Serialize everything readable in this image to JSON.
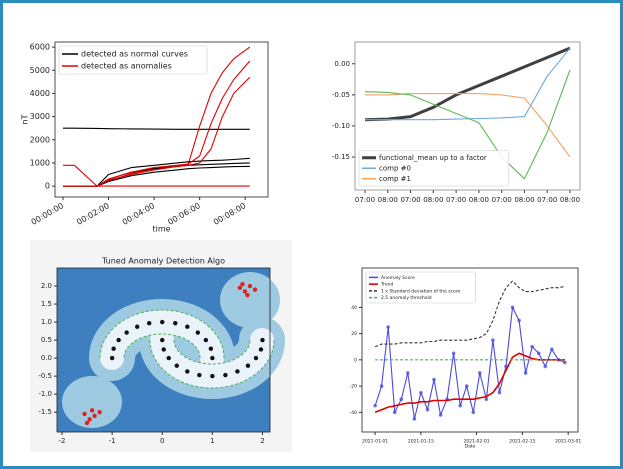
{
  "chart_data": [
    {
      "type": "line",
      "ylabel": "nT",
      "xlabel": "time",
      "x": [
        0,
        0.5,
        1.5,
        2,
        3,
        4,
        5,
        5.5,
        6,
        6.5,
        7,
        7.5,
        8.2
      ],
      "xlim": [
        -0.35,
        9
      ],
      "xticks": [
        {
          "value": 0,
          "label": "00:00:00"
        },
        {
          "value": 2,
          "label": "00:02:00"
        },
        {
          "value": 4,
          "label": "00:04:00"
        },
        {
          "value": 6,
          "label": "00:06:00"
        },
        {
          "value": 8,
          "label": "00:08:00"
        }
      ],
      "ylim": [
        -470,
        6220
      ],
      "yticks": [
        0,
        1000,
        2000,
        3000,
        4000,
        5000,
        6000
      ],
      "legend": "upper left",
      "series": [
        {
          "name": "detected as normal curves",
          "color": "#000000",
          "values": [
            2500,
            2500,
            2490,
            2480,
            2470,
            2460,
            2450,
            2450,
            2450,
            2450,
            2450,
            2450,
            2450
          ]
        },
        {
          "name": "detected as anomalies",
          "color": "#e00000",
          "values": [
            0,
            0,
            0,
            200,
            550,
            750,
            850,
            950,
            2600,
            4000,
            4900,
            5500,
            6000
          ]
        },
        {
          "color": "#000000",
          "values": [
            0,
            0,
            0,
            300,
            600,
            750,
            850,
            900,
            920,
            940,
            960,
            980,
            1000
          ]
        },
        {
          "color": "#000000",
          "values": [
            0,
            0,
            0,
            500,
            800,
            900,
            1000,
            1050,
            1080,
            1100,
            1120,
            1150,
            1200
          ]
        },
        {
          "color": "#000000",
          "values": [
            0,
            0,
            0,
            200,
            450,
            600,
            700,
            750,
            780,
            800,
            820,
            840,
            850
          ]
        },
        {
          "color": "#e00000",
          "values": [
            0,
            0,
            0,
            300,
            600,
            800,
            900,
            950,
            1300,
            2700,
            3800,
            4600,
            5400
          ]
        },
        {
          "color": "#e00000",
          "values": [
            0,
            0,
            0,
            250,
            500,
            700,
            850,
            900,
            1000,
            1600,
            3000,
            4000,
            4700
          ]
        },
        {
          "color": "#e00000",
          "values": [
            900,
            900,
            0,
            0,
            0,
            0,
            0,
            0,
            0,
            0,
            0,
            0,
            0
          ]
        }
      ]
    },
    {
      "type": "line",
      "categories": [
        "07:00",
        "08:00",
        "07:00",
        "08:00",
        "07:00",
        "08:00",
        "07:00",
        "08:00",
        "07:00",
        "08:00"
      ],
      "ylim": [
        -0.203,
        0.035
      ],
      "yticks": [
        {
          "value": 0,
          "label": "0.00"
        },
        {
          "value": -0.05,
          "label": "-0.05"
        },
        {
          "value": -0.1,
          "label": "-0.10"
        },
        {
          "value": -0.15,
          "label": "-0.15"
        }
      ],
      "legend": "lower left",
      "series": [
        {
          "name": "functional_mean up to a factor",
          "color": "#404040",
          "width": 3,
          "values": [
            -0.09,
            -0.089,
            -0.085,
            -0.07,
            -0.05,
            -0.035,
            -0.02,
            -0.005,
            0.01,
            0.025
          ]
        },
        {
          "name": "comp #0",
          "color": "#6fa8dc",
          "values": [
            -0.09,
            -0.09,
            -0.09,
            -0.09,
            -0.089,
            -0.088,
            -0.087,
            -0.085,
            -0.02,
            0.025
          ]
        },
        {
          "name": "comp #1",
          "color": "#f4a460",
          "values": [
            -0.05,
            -0.05,
            -0.048,
            -0.048,
            -0.048,
            -0.048,
            -0.05,
            -0.055,
            -0.1,
            -0.15
          ]
        },
        {
          "color": "#5cb85c",
          "values": [
            -0.045,
            -0.046,
            -0.05,
            -0.065,
            -0.08,
            -0.095,
            -0.15,
            -0.185,
            -0.11,
            -0.01
          ]
        }
      ]
    },
    {
      "type": "scatter",
      "title": "Tuned Anomaly Detection Algo",
      "xlim": [
        -2.1,
        2.15
      ],
      "xticks": [
        -2,
        -1,
        0,
        1,
        2
      ],
      "ylim": [
        -2.05,
        2.5
      ],
      "yticks": [
        {
          "value": -1.5,
          "label": "-1.5"
        },
        {
          "value": -1,
          "label": "-1.0"
        },
        {
          "value": -0.5,
          "label": "-0.5"
        },
        {
          "value": 0,
          "label": "0.0"
        },
        {
          "value": 0.5,
          "label": "0.5"
        },
        {
          "value": 1,
          "label": "1.0"
        },
        {
          "value": 1.5,
          "label": "1.5"
        },
        {
          "value": 2,
          "label": "2.0"
        }
      ],
      "series": [
        {
          "color": "#111111",
          "x": [
            1.0,
            0.97,
            0.87,
            0.71,
            0.5,
            0.26,
            0.0,
            -0.26,
            -0.5,
            -0.71,
            -0.87,
            -0.97,
            -1.0,
            0.0,
            0.03,
            0.13,
            0.29,
            0.5,
            0.74,
            1.0,
            1.26,
            1.5,
            1.71,
            1.87,
            1.97,
            2.0
          ],
          "y": [
            0.0,
            0.26,
            0.5,
            0.71,
            0.87,
            0.97,
            1.0,
            0.97,
            0.87,
            0.71,
            0.5,
            0.26,
            0.0,
            0.5,
            0.24,
            0.0,
            -0.21,
            -0.37,
            -0.47,
            -0.5,
            -0.47,
            -0.37,
            -0.21,
            0.0,
            0.24,
            0.5
          ]
        },
        {
          "color": "#e02020",
          "x": [
            1.55,
            1.65,
            1.75,
            1.85,
            1.7,
            1.6,
            -1.55,
            -1.45,
            -1.35,
            -1.5,
            -1.25,
            -1.4
          ],
          "y": [
            1.95,
            1.85,
            2.0,
            1.9,
            1.75,
            2.05,
            -1.55,
            -1.7,
            -1.6,
            -1.8,
            -1.5,
            -1.45
          ]
        }
      ]
    },
    {
      "type": "line",
      "xlabel": "Date",
      "x": [
        "2021-01-01",
        "2021-01-03",
        "2021-01-05",
        "2021-01-07",
        "2021-01-09",
        "2021-01-11",
        "2021-01-13",
        "2021-01-15",
        "2021-01-17",
        "2021-01-19",
        "2021-01-21",
        "2021-01-23",
        "2021-01-25",
        "2021-01-27",
        "2021-01-29",
        "2021-01-31",
        "2021-02-02",
        "2021-02-04",
        "2021-02-06",
        "2021-02-08",
        "2021-02-10",
        "2021-02-12",
        "2021-02-14",
        "2021-02-16",
        "2021-02-18",
        "2021-02-20",
        "2021-02-22",
        "2021-02-24",
        "2021-02-26",
        "2021-02-28"
      ],
      "xlim": [
        "2020-12-28",
        "2021-03-04"
      ],
      "xticks": [
        "2021-01-01",
        "2021-01-15",
        "2021-02-01",
        "2021-02-15",
        "2021-03-01"
      ],
      "ylim": [
        -55,
        70
      ],
      "yticks": [
        -40,
        -20,
        0,
        20,
        40
      ],
      "legend": "upper left",
      "series": [
        {
          "name": "Anomaly Score",
          "color": "#4a4ae0",
          "marker": true,
          "values": [
            -35,
            -20,
            25,
            -40,
            -30,
            -10,
            -45,
            -25,
            -38,
            -15,
            -42,
            -30,
            5,
            -35,
            -20,
            -40,
            -10,
            -30,
            15,
            -25,
            -5,
            40,
            30,
            -10,
            10,
            5,
            -5,
            8,
            0,
            -2
          ]
        },
        {
          "name": "Trend",
          "color": "#e00000",
          "width": 1.6,
          "values": [
            -40,
            -38,
            -36,
            -35,
            -34,
            -33,
            -33,
            -32,
            -32,
            -31,
            -31,
            -31,
            -30,
            -30,
            -30,
            -30,
            -29,
            -28,
            -25,
            -18,
            -8,
            2,
            5,
            3,
            1,
            0,
            0,
            0,
            0,
            0
          ]
        },
        {
          "name": "1 x Standard deviation of the score",
          "color": "#333333",
          "dashed": true,
          "values": [
            10,
            12,
            12,
            12,
            13,
            13,
            13,
            13,
            14,
            14,
            15,
            15,
            15,
            15,
            15,
            16,
            17,
            20,
            30,
            45,
            55,
            60,
            55,
            52,
            52,
            53,
            54,
            55,
            55,
            56
          ]
        },
        {
          "name": "2.5 anomaly threshold",
          "color": "#4caf50",
          "dashed": true,
          "values": [
            0,
            0,
            0,
            0,
            0,
            0,
            0,
            0,
            0,
            0,
            0,
            0,
            0,
            0,
            0,
            0,
            0,
            0,
            0,
            0,
            0,
            0,
            0,
            0,
            0,
            0,
            0,
            0,
            0,
            0
          ]
        }
      ]
    }
  ]
}
